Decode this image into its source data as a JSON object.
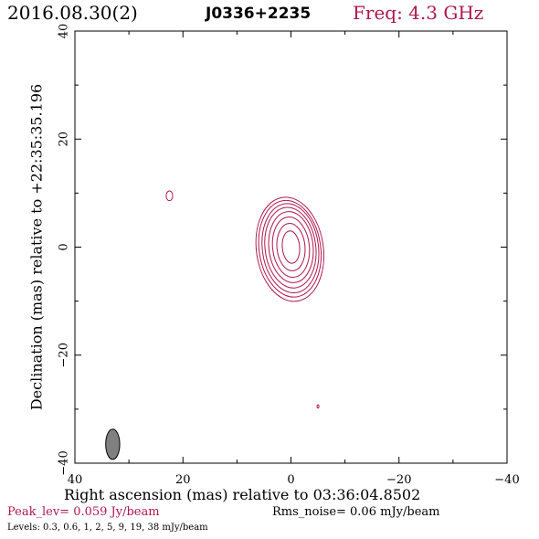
{
  "header": {
    "date": "2016.08.30(2)",
    "source": "J0336+2235",
    "freq": "Freq: 4.3 GHz"
  },
  "footer": {
    "peak": "Peak_lev=  0.059 Jy/beam",
    "rms": "Rms_noise= 0.06 mJy/beam",
    "levels": "Levels: 0.3, 0.6,   1,   2,   5,   9,  19,  38 mJy/beam"
  },
  "chart_data": {
    "type": "contour",
    "xlabel": "Right ascension (mas) relative to 03:36:04.8502",
    "ylabel": "Declination (mas) relative to +22:35:35.196",
    "xlim": [
      40,
      -40
    ],
    "ylim": [
      -40,
      40
    ],
    "xticks": [
      40,
      20,
      0,
      -20,
      -40
    ],
    "yticks": [
      -40,
      -20,
      0,
      20,
      40
    ],
    "xtick_labels": [
      "40",
      "20",
      "0",
      "−20",
      "−40"
    ],
    "ytick_labels": [
      "−40",
      "−20",
      "0",
      "20",
      "40"
    ],
    "contour_color": "#b0174a",
    "beam_color": "#808080",
    "contours": [
      {
        "x": 0,
        "y": 0,
        "a": 1.6,
        "b": 3.0,
        "angle": -5
      },
      {
        "x": 0,
        "y": 0,
        "a": 2.6,
        "b": 4.4,
        "angle": -5
      },
      {
        "x": 0,
        "y": 0,
        "a": 3.4,
        "b": 5.6,
        "angle": -6
      },
      {
        "x": 0,
        "y": 0,
        "a": 4.1,
        "b": 6.6,
        "angle": -6
      },
      {
        "x": 0.1,
        "y": -0.1,
        "a": 4.7,
        "b": 7.5,
        "angle": -7
      },
      {
        "x": 0.1,
        "y": -0.2,
        "a": 5.2,
        "b": 8.3,
        "angle": -7
      },
      {
        "x": 0.2,
        "y": -0.3,
        "a": 5.7,
        "b": 9.0,
        "angle": -8
      },
      {
        "x": 0.2,
        "y": -0.4,
        "a": 6.2,
        "b": 9.7,
        "angle": -8
      },
      {
        "x": 22.5,
        "y": 9.5,
        "a": 0.6,
        "b": 0.9,
        "angle": 0
      },
      {
        "x": -5,
        "y": -29.5,
        "a": 0.15,
        "b": 0.3,
        "angle": 0
      }
    ],
    "beam": {
      "x": 33,
      "y": -36.5,
      "a": 1.3,
      "b": 2.8,
      "angle": 0
    }
  }
}
